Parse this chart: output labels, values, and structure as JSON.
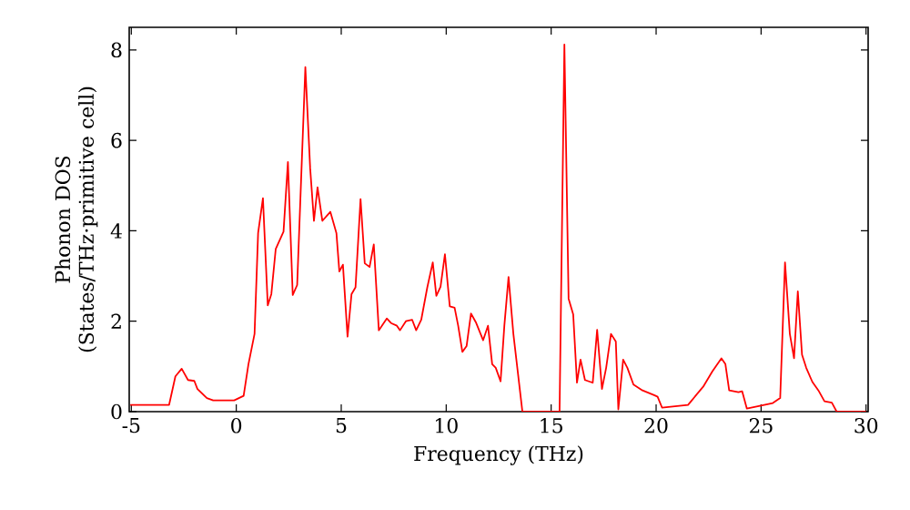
{
  "chart_data": {
    "type": "line",
    "xlabel": "Frequency (THz)",
    "ylabel": "Phonon DOS (States/THz·primitive cell)",
    "xlim": [
      -5.1,
      30.1
    ],
    "ylim": [
      0,
      8.5
    ],
    "xticks": [
      -5,
      0,
      5,
      10,
      15,
      20,
      25,
      30
    ],
    "yticks": [
      0,
      2,
      4,
      6,
      8
    ],
    "grid": false,
    "marker": "none",
    "line_style": "solid",
    "series": [
      {
        "color": "#ff0000",
        "x": [
          -5.05,
          -3.2,
          -2.9,
          -2.6,
          -2.3,
          -2.0,
          -1.85,
          -1.4,
          -1.1,
          -0.1,
          0.35,
          0.58,
          0.87,
          1.04,
          1.27,
          1.5,
          1.67,
          1.88,
          2.25,
          2.46,
          2.69,
          2.9,
          3.29,
          3.52,
          3.7,
          3.87,
          4.1,
          4.48,
          4.77,
          4.91,
          5.08,
          5.3,
          5.49,
          5.68,
          5.92,
          6.12,
          6.35,
          6.55,
          6.79,
          7.17,
          7.37,
          7.65,
          7.8,
          8.08,
          8.38,
          8.57,
          8.81,
          9.1,
          9.36,
          9.53,
          9.73,
          9.94,
          10.17,
          10.4,
          10.57,
          10.77,
          10.97,
          11.18,
          11.41,
          11.76,
          11.99,
          12.19,
          12.36,
          12.59,
          12.77,
          12.97,
          13.2,
          13.63,
          15.4,
          15.63,
          15.83,
          16.05,
          16.23,
          16.4,
          16.61,
          16.98,
          17.19,
          17.42,
          17.62,
          17.85,
          18.08,
          18.2,
          18.43,
          18.63,
          18.92,
          19.35,
          19.93,
          20.07,
          20.28,
          21.52,
          22.24,
          22.68,
          23.11,
          23.3,
          23.48,
          23.92,
          24.1,
          24.32,
          24.84,
          25.56,
          25.91,
          26.14,
          26.37,
          26.57,
          26.75,
          26.95,
          27.15,
          27.44,
          27.73,
          28.02,
          28.37,
          28.6,
          30.0
        ],
        "values": [
          0.15,
          0.15,
          0.78,
          0.95,
          0.7,
          0.68,
          0.5,
          0.3,
          0.25,
          0.25,
          0.35,
          1.05,
          1.72,
          3.95,
          4.72,
          2.35,
          2.6,
          3.6,
          3.98,
          5.52,
          2.58,
          2.8,
          7.62,
          5.38,
          4.22,
          4.96,
          4.22,
          4.42,
          3.95,
          3.1,
          3.25,
          1.66,
          2.6,
          2.75,
          4.7,
          3.28,
          3.2,
          3.7,
          1.8,
          2.06,
          1.96,
          1.9,
          1.8,
          2.0,
          2.03,
          1.8,
          2.03,
          2.75,
          3.3,
          2.56,
          2.76,
          3.48,
          2.33,
          2.3,
          1.9,
          1.32,
          1.45,
          2.17,
          1.98,
          1.58,
          1.9,
          1.05,
          0.97,
          0.67,
          1.9,
          2.98,
          1.72,
          0.0,
          0.0,
          8.12,
          2.5,
          2.15,
          0.64,
          1.15,
          0.7,
          0.64,
          1.81,
          0.5,
          0.97,
          1.72,
          1.55,
          0.05,
          1.15,
          0.97,
          0.6,
          0.47,
          0.36,
          0.33,
          0.09,
          0.15,
          0.55,
          0.89,
          1.18,
          1.05,
          0.47,
          0.43,
          0.45,
          0.07,
          0.12,
          0.19,
          0.3,
          3.3,
          1.72,
          1.18,
          2.66,
          1.26,
          0.97,
          0.66,
          0.47,
          0.23,
          0.2,
          0.0,
          0.0
        ]
      }
    ]
  }
}
